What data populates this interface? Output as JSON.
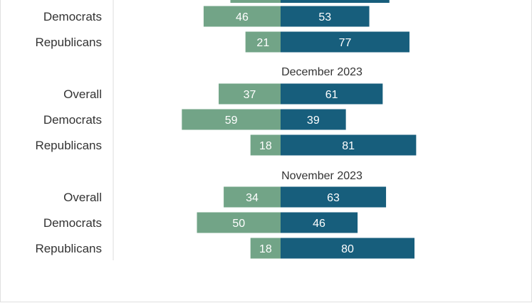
{
  "colors": {
    "negative": "#72a487",
    "positive": "#175e7c",
    "axis": "#dddddd",
    "text": "#333333"
  },
  "chart_data": {
    "type": "bar",
    "orientation": "horizontal-diverging",
    "categories": [
      "Overall",
      "Democrats",
      "Republicans"
    ],
    "groups": [
      {
        "title": "",
        "left_values": [
          null,
          46,
          21
        ],
        "right_values": [
          null,
          53,
          77
        ]
      },
      {
        "title": "December 2023",
        "left_values": [
          37,
          59,
          18
        ],
        "right_values": [
          61,
          39,
          81
        ]
      },
      {
        "title": "November 2023",
        "left_values": [
          34,
          50,
          18
        ],
        "right_values": [
          63,
          46,
          80
        ]
      }
    ],
    "top_group_partial": {
      "left_value": 30,
      "right_value": 65
    }
  }
}
